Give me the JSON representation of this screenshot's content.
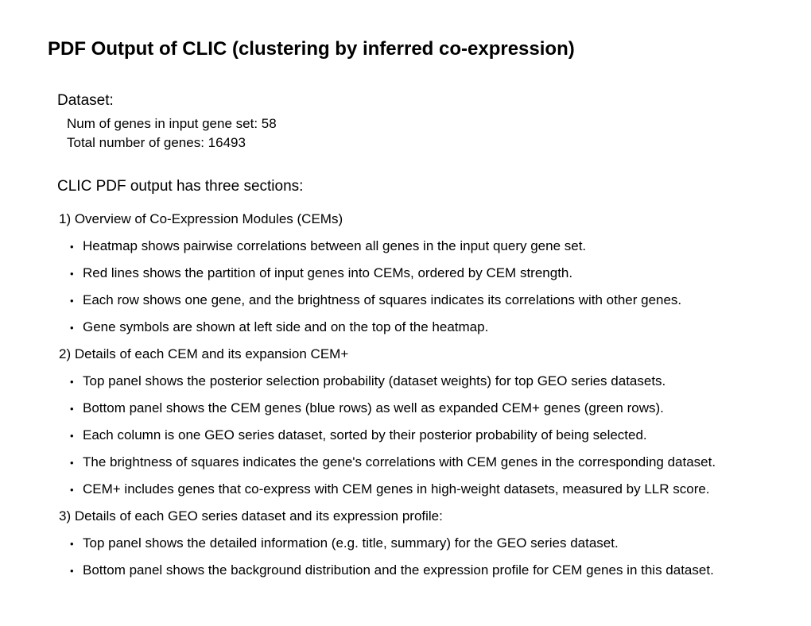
{
  "title": "PDF Output of CLIC (clustering by inferred co-expression)",
  "dataset": {
    "header": "Dataset:",
    "line1": "Num of genes in input gene set:  58",
    "line2": "Total number of genes:  16493"
  },
  "sections_header": "CLIC PDF output has three sections:",
  "section1": {
    "title": "1) Overview of Co-Expression Modules (CEMs)",
    "bullets": [
      "Heatmap shows pairwise correlations between all genes in the input query gene set.",
      "Red lines shows the partition of input genes into CEMs, ordered by CEM strength.",
      "Each row shows one gene, and the brightness of squares indicates its correlations with other genes.",
      "Gene symbols are shown at left side and on the top of the heatmap."
    ]
  },
  "section2": {
    "title": "2) Details of each CEM and its expansion CEM+",
    "bullets": [
      "Top panel shows the posterior selection probability (dataset weights) for top GEO series datasets.",
      "Bottom panel shows the CEM genes (blue rows) as well as expanded CEM+ genes (green rows).",
      "Each column is one GEO series dataset, sorted by their posterior probability of being selected.",
      "The brightness of squares indicates the gene's correlations with CEM genes in the corresponding dataset.",
      "CEM+ includes genes that co-express with CEM genes in high-weight datasets, measured by LLR score."
    ]
  },
  "section3": {
    "title": "3) Details of each GEO series dataset and its expression profile:",
    "bullets": [
      "Top panel shows the detailed information (e.g. title, summary) for the GEO series dataset.",
      "Bottom panel shows the background distribution and the expression profile for CEM genes in this dataset."
    ]
  }
}
